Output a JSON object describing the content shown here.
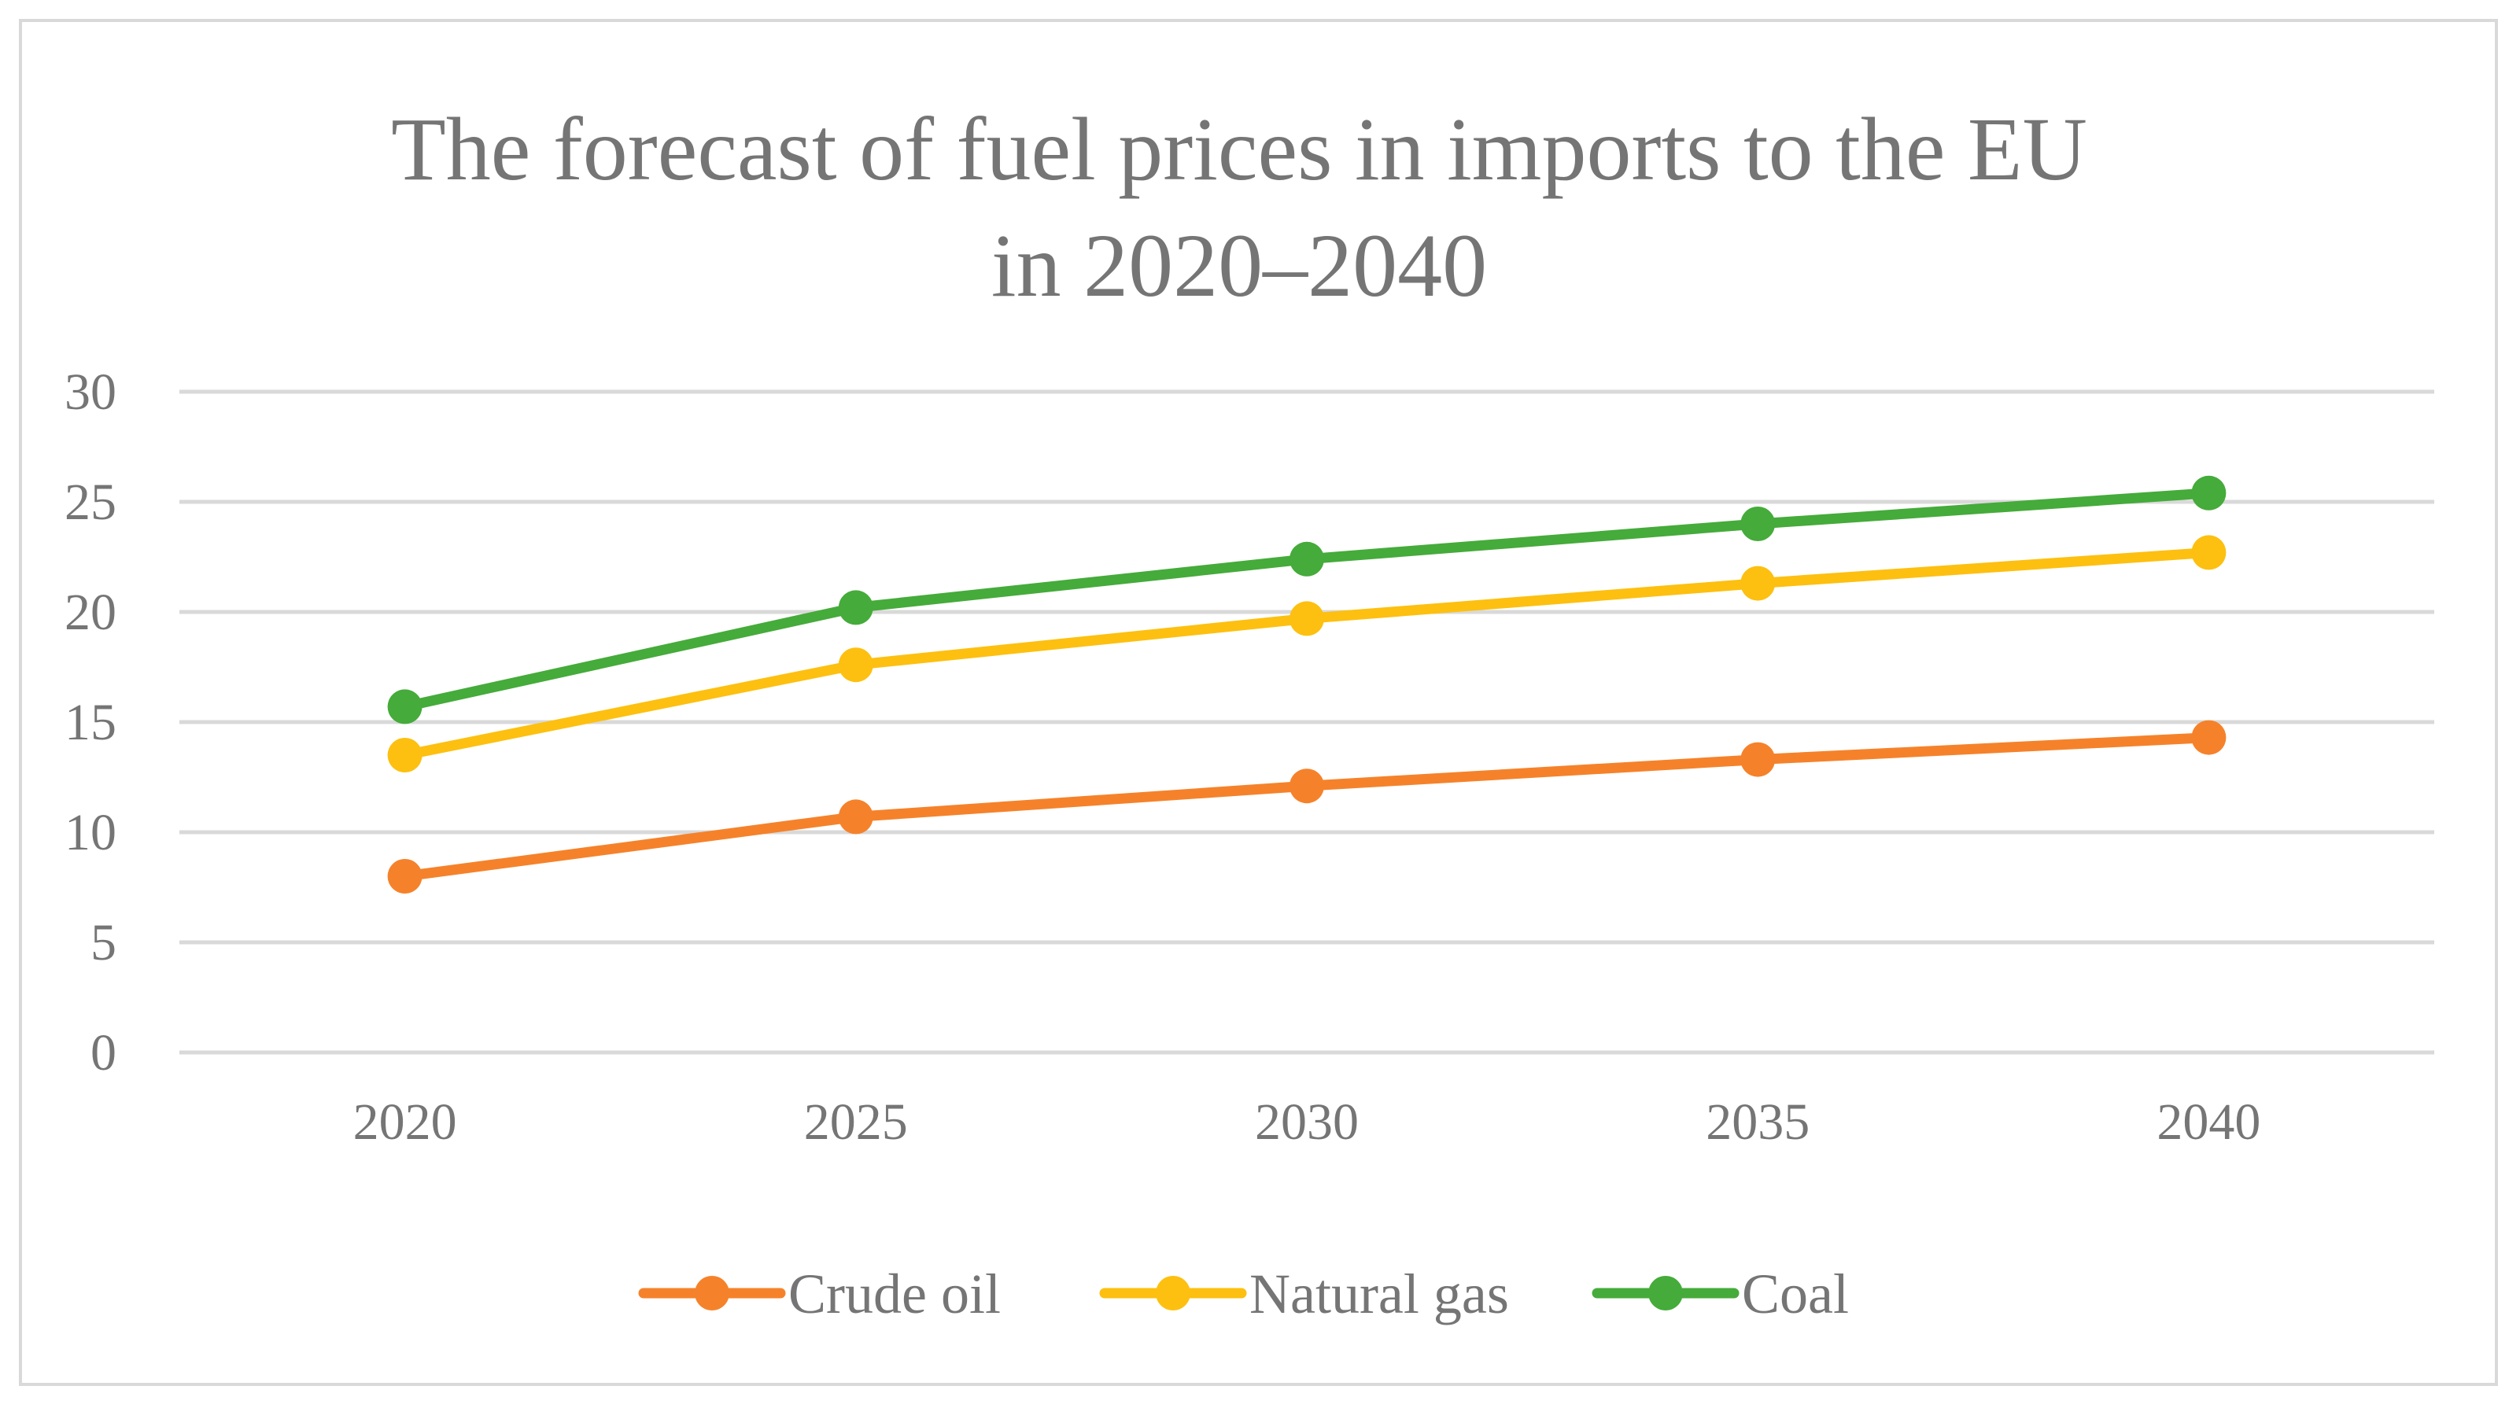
{
  "chart_data": {
    "type": "line",
    "title_lines": [
      "The forecast of fuel prices in imports to the EU",
      "in 2020–2040"
    ],
    "categories": [
      "2020",
      "2025",
      "2030",
      "2035",
      "2040"
    ],
    "xlabel": "",
    "ylabel": "",
    "ylim": [
      0,
      30
    ],
    "yticks": [
      "0",
      "5",
      "10",
      "15",
      "20",
      "25",
      "30"
    ],
    "grid": true,
    "legend_position": "bottom",
    "series": [
      {
        "name": "Crude oil",
        "color": "#f5822a",
        "values": [
          8.0,
          10.7,
          12.1,
          13.3,
          14.3
        ]
      },
      {
        "name": "Natural gas",
        "color": "#fdc010",
        "values": [
          13.5,
          17.6,
          19.7,
          21.3,
          22.7
        ]
      },
      {
        "name": "Coal",
        "color": "#45ab3a",
        "values": [
          15.7,
          20.2,
          22.4,
          24.0,
          25.4
        ]
      }
    ]
  }
}
